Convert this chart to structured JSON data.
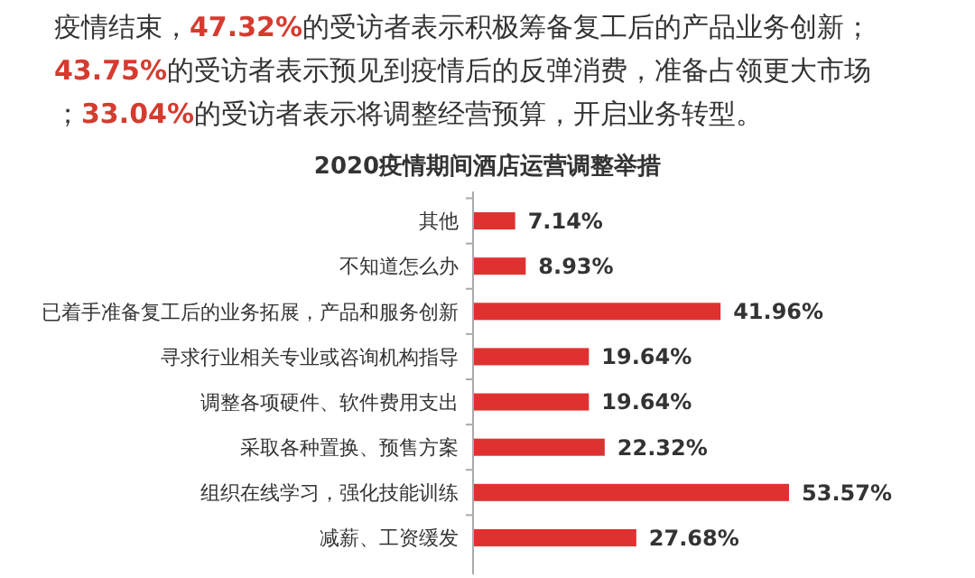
{
  "chart_data": {
    "type": "bar",
    "orientation": "horizontal",
    "title": "2020疫情期间酒店运营调整举措",
    "annotations": [
      "疫情结束，47.32%的受访者表示积极筹备复工后的产品业务创新；",
      "43.75%的受访者表示预见到疫情后的反弹消费，准备占领更大市场",
      "；33.04%的受访者表示将调整经营预算，开启业务转型。"
    ],
    "categories": [
      "其他",
      "不知道怎么办",
      "已着手准备复工后的业务拓展，产品和服务创新",
      "寻求行业相关专业或咨询机构指导",
      "调整各项硬件、软件费用支出",
      "采取各种置换、预售方案",
      "组织在线学习，强化技能训练",
      "减薪、工资缓发"
    ],
    "values": [
      7.14,
      8.93,
      41.96,
      19.64,
      19.64,
      22.32,
      53.57,
      27.68
    ],
    "value_labels": [
      "7.14%",
      "8.93%",
      "41.96%",
      "19.64%",
      "19.64%",
      "22.32%",
      "53.57%",
      "27.68%"
    ],
    "color": "#e03131"
  }
}
